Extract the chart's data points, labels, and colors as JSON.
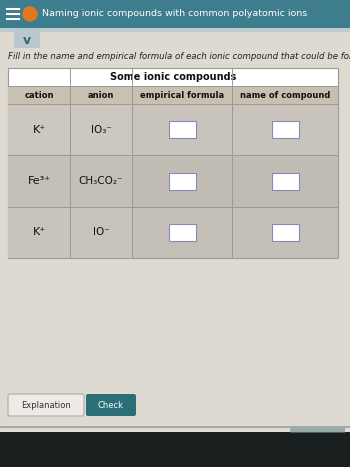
{
  "title": "Naming ionic compounds with common polyatomic ions",
  "instruction": "Fill in the name and empirical formula of each ionic compound that could be formed from the io",
  "table_header": "Some ionic compounds",
  "col_headers": [
    "cation",
    "anion",
    "empirical formula",
    "name of compound"
  ],
  "rows": [
    {
      "cation": "K⁺",
      "anion": "IO₃⁻"
    },
    {
      "cation": "Fe³⁺",
      "anion": "CH₃CO₂⁻"
    },
    {
      "cation": "K⁺",
      "anion": "IO⁻"
    }
  ],
  "bg_top": "#3d7d8d",
  "bg_page": "#e2ddd4",
  "bg_dropdown": "#b8c8cc",
  "text_color": "#222222",
  "header_text_color": "#111111",
  "table_border": "#999999",
  "col_header_bg": "#c8c0b0",
  "row_bg_cation": "#c8c2b8",
  "row_bg_input": "#c0bab0",
  "input_box_bg": "#ffffff",
  "input_box_border": "#8888bb",
  "btn_explanation_bg": "#eeebe6",
  "btn_explanation_border": "#aaaaaa",
  "btn_check_bg": "#2a6e78",
  "btn_text_exp": "#333333",
  "btn_text_check": "#ffffff",
  "bottom_bar_bg": "#1a2020",
  "scrollbar_bg": "#6a8888",
  "orange_circle": "#e07820"
}
